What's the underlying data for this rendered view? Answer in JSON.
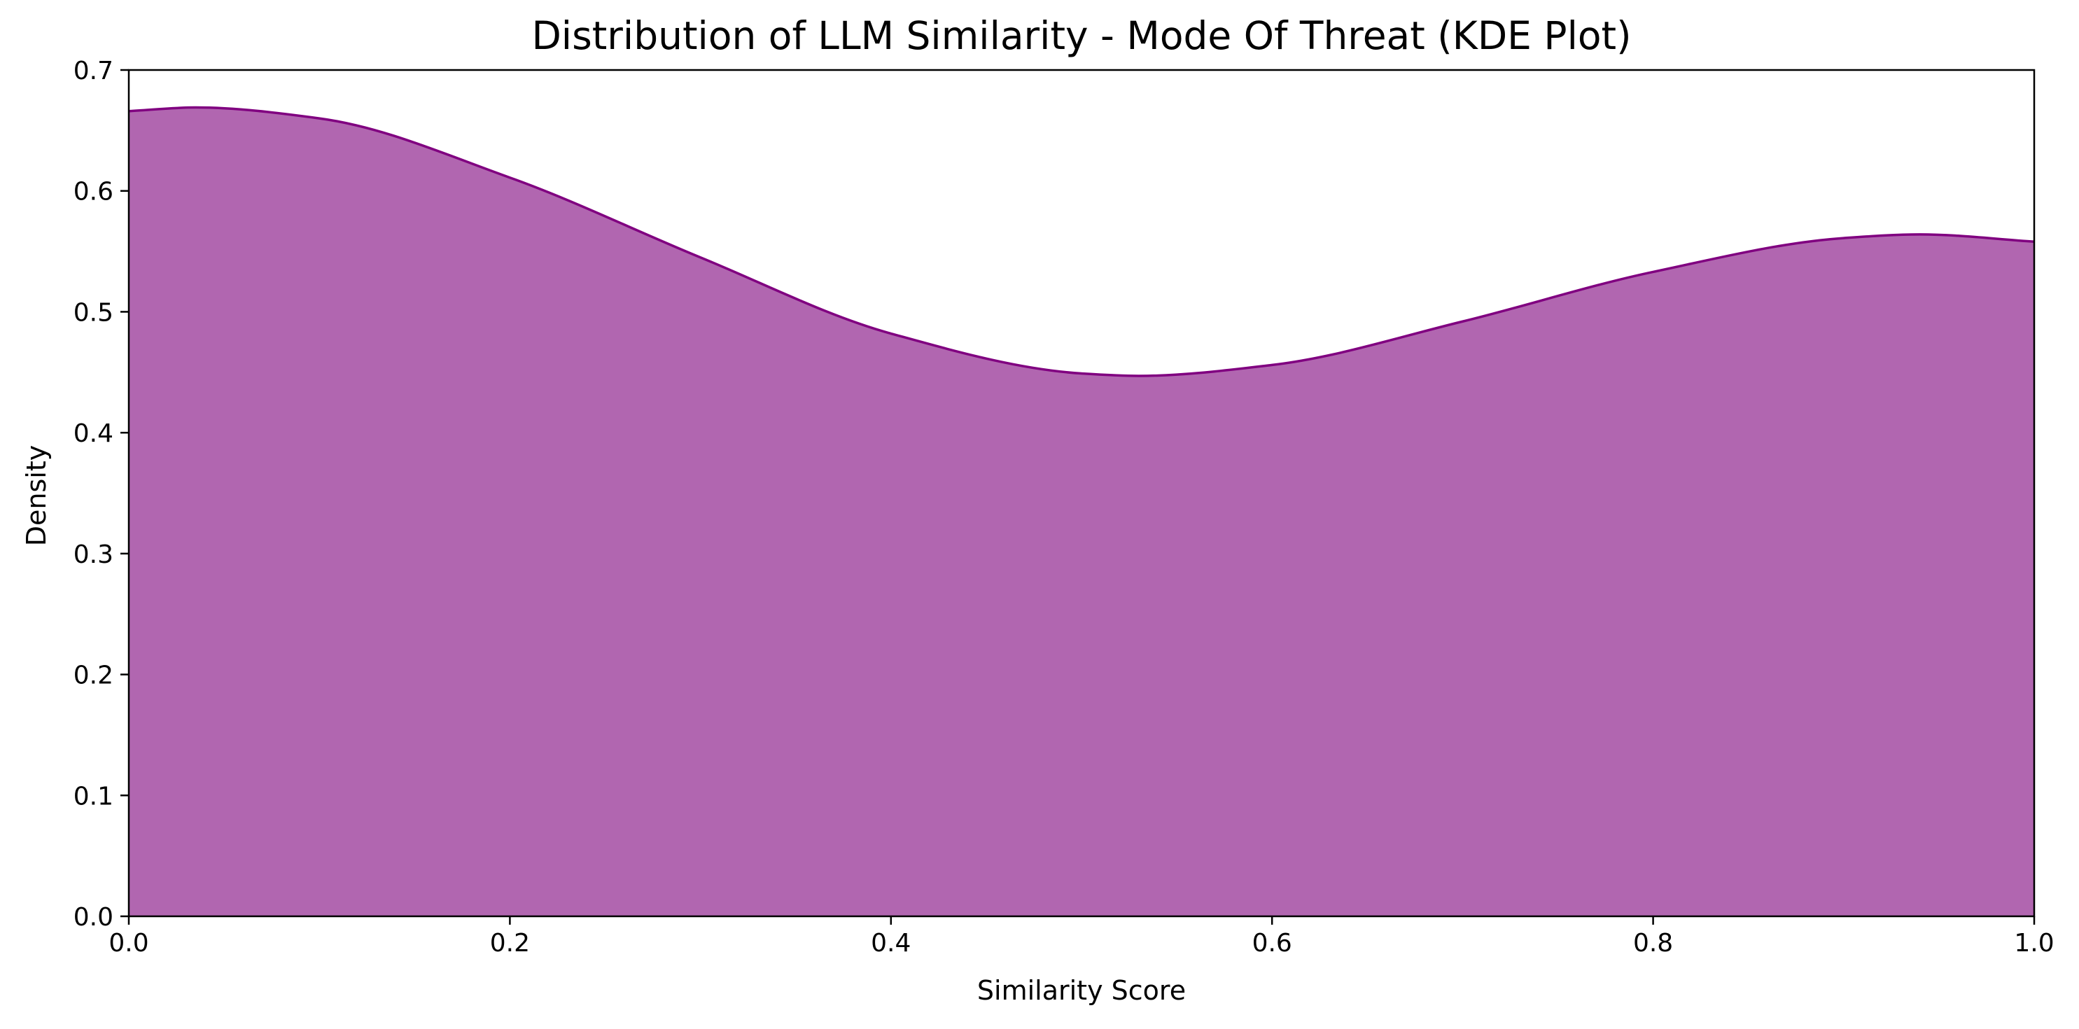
{
  "chart_data": {
    "type": "area",
    "title": "Distribution of LLM Similarity - Mode Of Threat (KDE Plot)",
    "xlabel": "Similarity Score",
    "ylabel": "Density",
    "xlim": [
      0.0,
      1.0
    ],
    "ylim": [
      0.0,
      0.7
    ],
    "xticks": [
      "0.0",
      "0.2",
      "0.4",
      "0.6",
      "0.8",
      "1.0"
    ],
    "yticks": [
      "0.0",
      "0.1",
      "0.2",
      "0.3",
      "0.4",
      "0.5",
      "0.6",
      "0.7"
    ],
    "grid": false,
    "legend": "none",
    "fill_color": "#b166b0",
    "line_color": "#800080",
    "series": [
      {
        "x": [
          0.0,
          0.035,
          0.1,
          0.2,
          0.3,
          0.4,
          0.5,
          0.53,
          0.6,
          0.7,
          0.8,
          0.9,
          0.94,
          1.0
        ],
        "y": [
          0.666,
          0.669,
          0.66,
          0.611,
          0.545,
          0.482,
          0.449,
          0.447,
          0.456,
          0.492,
          0.533,
          0.561,
          0.564,
          0.558
        ]
      }
    ]
  }
}
